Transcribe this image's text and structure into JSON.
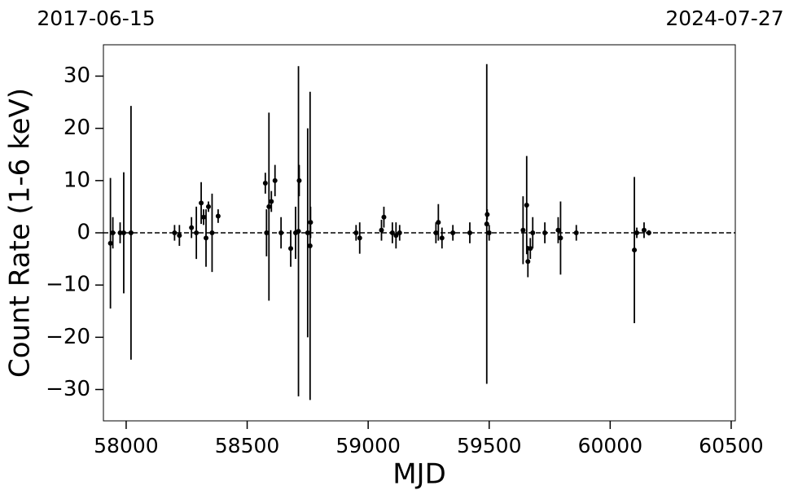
{
  "chart_data": {
    "type": "errorbar",
    "top_labels": [
      "2017-06-15",
      "2024-07-27"
    ],
    "xlabel": "MJD",
    "ylabel": "Count Rate (1-6 keV)",
    "color": "#000000",
    "hline": {
      "y": 0,
      "style": "dashed"
    },
    "xlim": [
      57906,
      60517
    ],
    "ylim": [
      -36,
      36
    ],
    "xticks": [
      58000,
      58500,
      59000,
      59500,
      60000,
      60500
    ],
    "yticks": [
      {
        "value": -30,
        "label": "−30"
      },
      {
        "value": -20,
        "label": "−20"
      },
      {
        "value": -10,
        "label": "−10"
      },
      0,
      10,
      20,
      30
    ],
    "x": [
      57935,
      57945,
      57975,
      57990,
      58020,
      58200,
      58220,
      58270,
      58290,
      58310,
      58320,
      58330,
      58340,
      58355,
      58380,
      58575,
      58580,
      58590,
      58600,
      58615,
      58640,
      58680,
      58700,
      58712,
      58715,
      58750,
      58760,
      58762,
      58950,
      58965,
      59055,
      59065,
      59100,
      59115,
      59130,
      59280,
      59290,
      59305,
      59350,
      59420,
      59490,
      59492,
      59500,
      59640,
      59655,
      59660,
      59670,
      59680,
      59730,
      59785,
      59795,
      59860,
      60100,
      60110,
      60140,
      60160
    ],
    "values": [
      -2,
      0,
      0,
      0,
      0,
      0,
      -0.5,
      1,
      0,
      5.7,
      3,
      -1,
      5,
      0,
      3.2,
      9.5,
      0,
      5,
      6,
      10,
      0,
      -3,
      0,
      0.3,
      10,
      0,
      -2.5,
      2,
      0,
      -1,
      0.5,
      3,
      0,
      -0.5,
      0,
      0,
      2,
      -1,
      0,
      0,
      1.7,
      3.5,
      0,
      0.5,
      5.3,
      -5.5,
      -3,
      0,
      0,
      0.5,
      -1,
      0,
      -3.3,
      0,
      0.5,
      0
    ],
    "errors": [
      12.5,
      3,
      2,
      11.6,
      24.3,
      1.5,
      2,
      2,
      5,
      4,
      1.5,
      5.5,
      1,
      7.5,
      1.3,
      2,
      4.5,
      18,
      2,
      3,
      3,
      3.5,
      5,
      31.6,
      3,
      20,
      29.5,
      3,
      1.5,
      3,
      2,
      2,
      2,
      2.5,
      1.5,
      2,
      3.5,
      2,
      1.5,
      2,
      30.6,
      1,
      1.5,
      6.5,
      9.4,
      3,
      2,
      3,
      2,
      2.5,
      7,
      1.5,
      14,
      1,
      1.5,
      0.5
    ]
  }
}
